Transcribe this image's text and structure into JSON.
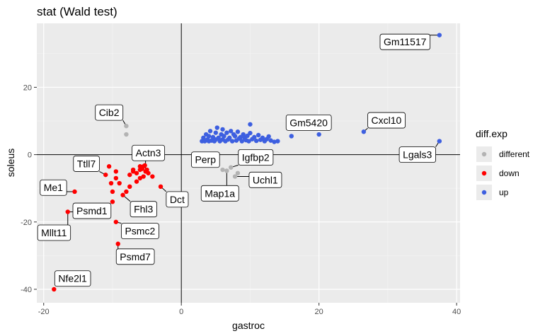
{
  "chart_data": {
    "type": "scatter",
    "title": "stat (Wald test)",
    "xlabel": "gastroc",
    "ylabel": "soleus",
    "xlim": [
      -21,
      40.5
    ],
    "ylim": [
      -44,
      39
    ],
    "xticks": [
      -20,
      0,
      20,
      40
    ],
    "yticks": [
      -40,
      -20,
      0,
      20
    ],
    "grid": true,
    "reference_lines": {
      "x": 0,
      "y": 0
    },
    "legend": {
      "title": "diff.exp",
      "position": "right",
      "entries": [
        {
          "name": "different",
          "color": "#b3b3b3"
        },
        {
          "name": "down",
          "color": "#ff0000"
        },
        {
          "name": "up",
          "color": "#3d5fe0"
        }
      ]
    },
    "series": [
      {
        "name": "different",
        "color": "#b3b3b3",
        "points": [
          [
            -8,
            8.5
          ],
          [
            -8,
            6
          ],
          [
            6,
            -4.5
          ],
          [
            6.6,
            -4.8
          ],
          [
            7.2,
            -3.8
          ],
          [
            7.8,
            -6.5
          ],
          [
            8.2,
            -5.5
          ]
        ]
      },
      {
        "name": "down",
        "color": "#ff0000",
        "points": [
          [
            -18.5,
            -40
          ],
          [
            -16.5,
            -17
          ],
          [
            -15.5,
            -11
          ],
          [
            -14.5,
            -16
          ],
          [
            -11,
            -6
          ],
          [
            -10.5,
            -3.5
          ],
          [
            -10.2,
            -8.5
          ],
          [
            -10,
            -14
          ],
          [
            -10,
            -11
          ],
          [
            -9.5,
            -20
          ],
          [
            -9.5,
            -5
          ],
          [
            -9.5,
            -7
          ],
          [
            -9.2,
            -26.5
          ],
          [
            -9,
            -8.5
          ],
          [
            -8.5,
            -12
          ],
          [
            -8,
            -11
          ],
          [
            -7.5,
            -6
          ],
          [
            -7.5,
            -9.5
          ],
          [
            -7,
            -5
          ],
          [
            -7,
            -4.5
          ],
          [
            -6.5,
            -5.5
          ],
          [
            -6.5,
            -8
          ],
          [
            -6,
            -7
          ],
          [
            -6,
            -4.5
          ],
          [
            -6,
            -3.5
          ],
          [
            -5.7,
            -4.2
          ],
          [
            -5.5,
            -6.5
          ],
          [
            -5.5,
            -3.5
          ],
          [
            -5.2,
            -5
          ],
          [
            -5,
            -4.5
          ],
          [
            -4.8,
            -5.5
          ],
          [
            -5.3,
            -3.2
          ],
          [
            -4.2,
            -6.5
          ],
          [
            -3,
            -9.5
          ]
        ]
      },
      {
        "name": "up",
        "color": "#3d5fe0",
        "points": [
          [
            37.5,
            35.5
          ],
          [
            26.5,
            6.8
          ],
          [
            20,
            6
          ],
          [
            37.5,
            4
          ],
          [
            16,
            5.5
          ],
          [
            10,
            9
          ],
          [
            14,
            4
          ],
          [
            13.5,
            3.8
          ],
          [
            3,
            4
          ],
          [
            3.2,
            5
          ],
          [
            3.4,
            4
          ],
          [
            3.6,
            6
          ],
          [
            3.8,
            4.5
          ],
          [
            4,
            5.5
          ],
          [
            4,
            4
          ],
          [
            4.2,
            7
          ],
          [
            4.4,
            4.2
          ],
          [
            4.6,
            5.2
          ],
          [
            4.8,
            4
          ],
          [
            5,
            6.5
          ],
          [
            5,
            4.5
          ],
          [
            5.2,
            8
          ],
          [
            5.4,
            5
          ],
          [
            5.6,
            4
          ],
          [
            5.8,
            6
          ],
          [
            6,
            4.5
          ],
          [
            6,
            7.5
          ],
          [
            6.2,
            5.5
          ],
          [
            6.4,
            4
          ],
          [
            6.6,
            6.5
          ],
          [
            6.8,
            4.5
          ],
          [
            7,
            5
          ],
          [
            7.2,
            7
          ],
          [
            7.4,
            4
          ],
          [
            7.6,
            6
          ],
          [
            7.8,
            5.5
          ],
          [
            8,
            4.2
          ],
          [
            8.2,
            6.8
          ],
          [
            8.4,
            4.8
          ],
          [
            8.6,
            5.2
          ],
          [
            8.8,
            4
          ],
          [
            9,
            6
          ],
          [
            9.2,
            5
          ],
          [
            9.4,
            4.3
          ],
          [
            9.6,
            5.6
          ],
          [
            9.8,
            4
          ],
          [
            10,
            6.4
          ],
          [
            10.3,
            4.6
          ],
          [
            10.6,
            5.2
          ],
          [
            10.9,
            4.1
          ],
          [
            11.2,
            5.8
          ],
          [
            11.5,
            4.4
          ],
          [
            11.8,
            5
          ],
          [
            12.1,
            4
          ],
          [
            12.4,
            4.6
          ],
          [
            12.7,
            5.4
          ],
          [
            13,
            4.2
          ]
        ]
      }
    ],
    "annotations": [
      {
        "text": "Gm11517",
        "point": [
          37.5,
          35.5
        ],
        "label": [
          32.5,
          33.5
        ]
      },
      {
        "text": "Cib2",
        "point": [
          -8,
          8.5
        ],
        "label": [
          -10.5,
          12.5
        ]
      },
      {
        "text": "Gm5420",
        "point": [
          20,
          6
        ],
        "label": [
          18.5,
          9.5
        ]
      },
      {
        "text": "Cxcl10",
        "point": [
          26.5,
          6.8
        ],
        "label": [
          29.8,
          10.2
        ]
      },
      {
        "text": "Lgals3",
        "point": [
          37.5,
          4
        ],
        "label": [
          34.3,
          0
        ]
      },
      {
        "text": "Actn3",
        "point": [
          -5.2,
          -5
        ],
        "label": [
          -4.8,
          0.5
        ]
      },
      {
        "text": "Perp",
        "point": [
          6,
          -4.5
        ],
        "label": [
          3.5,
          -1.5
        ]
      },
      {
        "text": "Igfbp2",
        "point": [
          7.2,
          -3.8
        ],
        "label": [
          10.8,
          -0.8
        ]
      },
      {
        "text": "Ttll7",
        "point": [
          -11,
          -6
        ],
        "label": [
          -13.8,
          -2.7
        ]
      },
      {
        "text": "Uchl1",
        "point": [
          7.8,
          -6.5
        ],
        "label": [
          12.2,
          -7.5
        ]
      },
      {
        "text": "Me1",
        "point": [
          -15.5,
          -11
        ],
        "label": [
          -18.6,
          -9.8
        ]
      },
      {
        "text": "Map1a",
        "point": [
          6.6,
          -4.8
        ],
        "label": [
          5.6,
          -11.5
        ]
      },
      {
        "text": "Dct",
        "point": [
          -3,
          -9.5
        ],
        "label": [
          -0.6,
          -13.3
        ]
      },
      {
        "text": "Fhl3",
        "point": [
          -8.5,
          -12
        ],
        "label": [
          -5.5,
          -16.2
        ]
      },
      {
        "text": "Psmd1",
        "point": [
          -16.5,
          -17
        ],
        "label": [
          -13,
          -16.7
        ]
      },
      {
        "text": "Mllt11",
        "point": [
          -16.5,
          -17
        ],
        "label": [
          -18.5,
          -23.2
        ]
      },
      {
        "text": "Psmc2",
        "point": [
          -9.5,
          -20
        ],
        "label": [
          -6,
          -22.7
        ]
      },
      {
        "text": "Psmd7",
        "point": [
          -9.2,
          -26.5
        ],
        "label": [
          -6.7,
          -30.3
        ]
      },
      {
        "text": "Nfe2l1",
        "point": [
          -18.5,
          -40
        ],
        "label": [
          -15.8,
          -36.8
        ]
      }
    ]
  }
}
